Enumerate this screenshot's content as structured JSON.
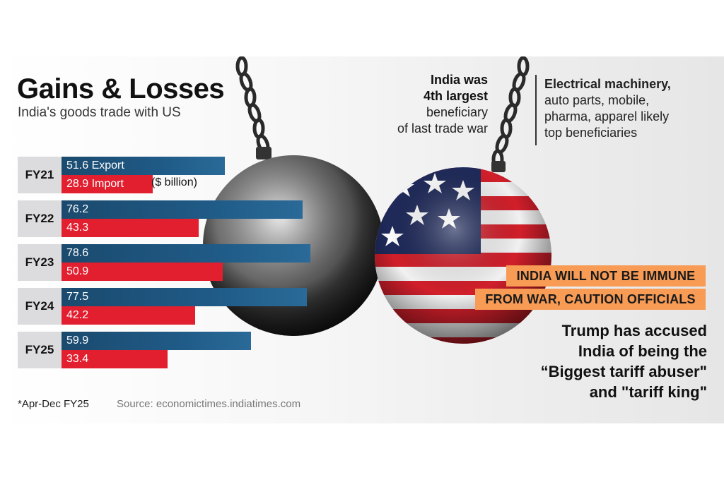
{
  "header": {
    "title": "Gains & Losses",
    "subtitle": "India's goods trade with US"
  },
  "chart_data": {
    "type": "bar",
    "orientation": "horizontal",
    "categories": [
      "FY21",
      "FY22",
      "FY23",
      "FY24",
      "FY25"
    ],
    "series": [
      {
        "name": "Export",
        "values": [
          51.6,
          76.2,
          78.6,
          77.5,
          59.9
        ],
        "color": "#1f5a86"
      },
      {
        "name": "Import",
        "values": [
          28.9,
          43.3,
          50.9,
          42.2,
          33.4
        ],
        "color": "#e21f2f"
      }
    ],
    "unit": "($ billion)",
    "xlim": [
      0,
      80
    ]
  },
  "labels": {
    "export_suffix": " Export",
    "import_suffix": " Import"
  },
  "footnote": "*Apr-Dec FY25",
  "source": "Source: economictimes.indiatimes.com",
  "annotations": {
    "left_bold_1": "India was",
    "left_bold_2": "4th largest",
    "left_line_3": "beneficiary",
    "left_line_4": "of last trade war",
    "right_bold": "Electrical machinery,",
    "right_line_2": "auto parts, mobile,",
    "right_line_3": "pharma, apparel likely",
    "right_line_4": "top beneficiaries"
  },
  "headlines": {
    "line1": "INDIA WILL NOT BE IMMUNE",
    "line2": "FROM WAR, CAUTION OFFICIALS"
  },
  "quote": {
    "line1": "Trump has accused",
    "line2": "India of being the",
    "line3": "“Biggest tariff abuser\"",
    "line4": "and \"tariff king\""
  },
  "colors": {
    "export": "#1f5a86",
    "import": "#e21f2f",
    "headline_bg": "#f79b55"
  }
}
